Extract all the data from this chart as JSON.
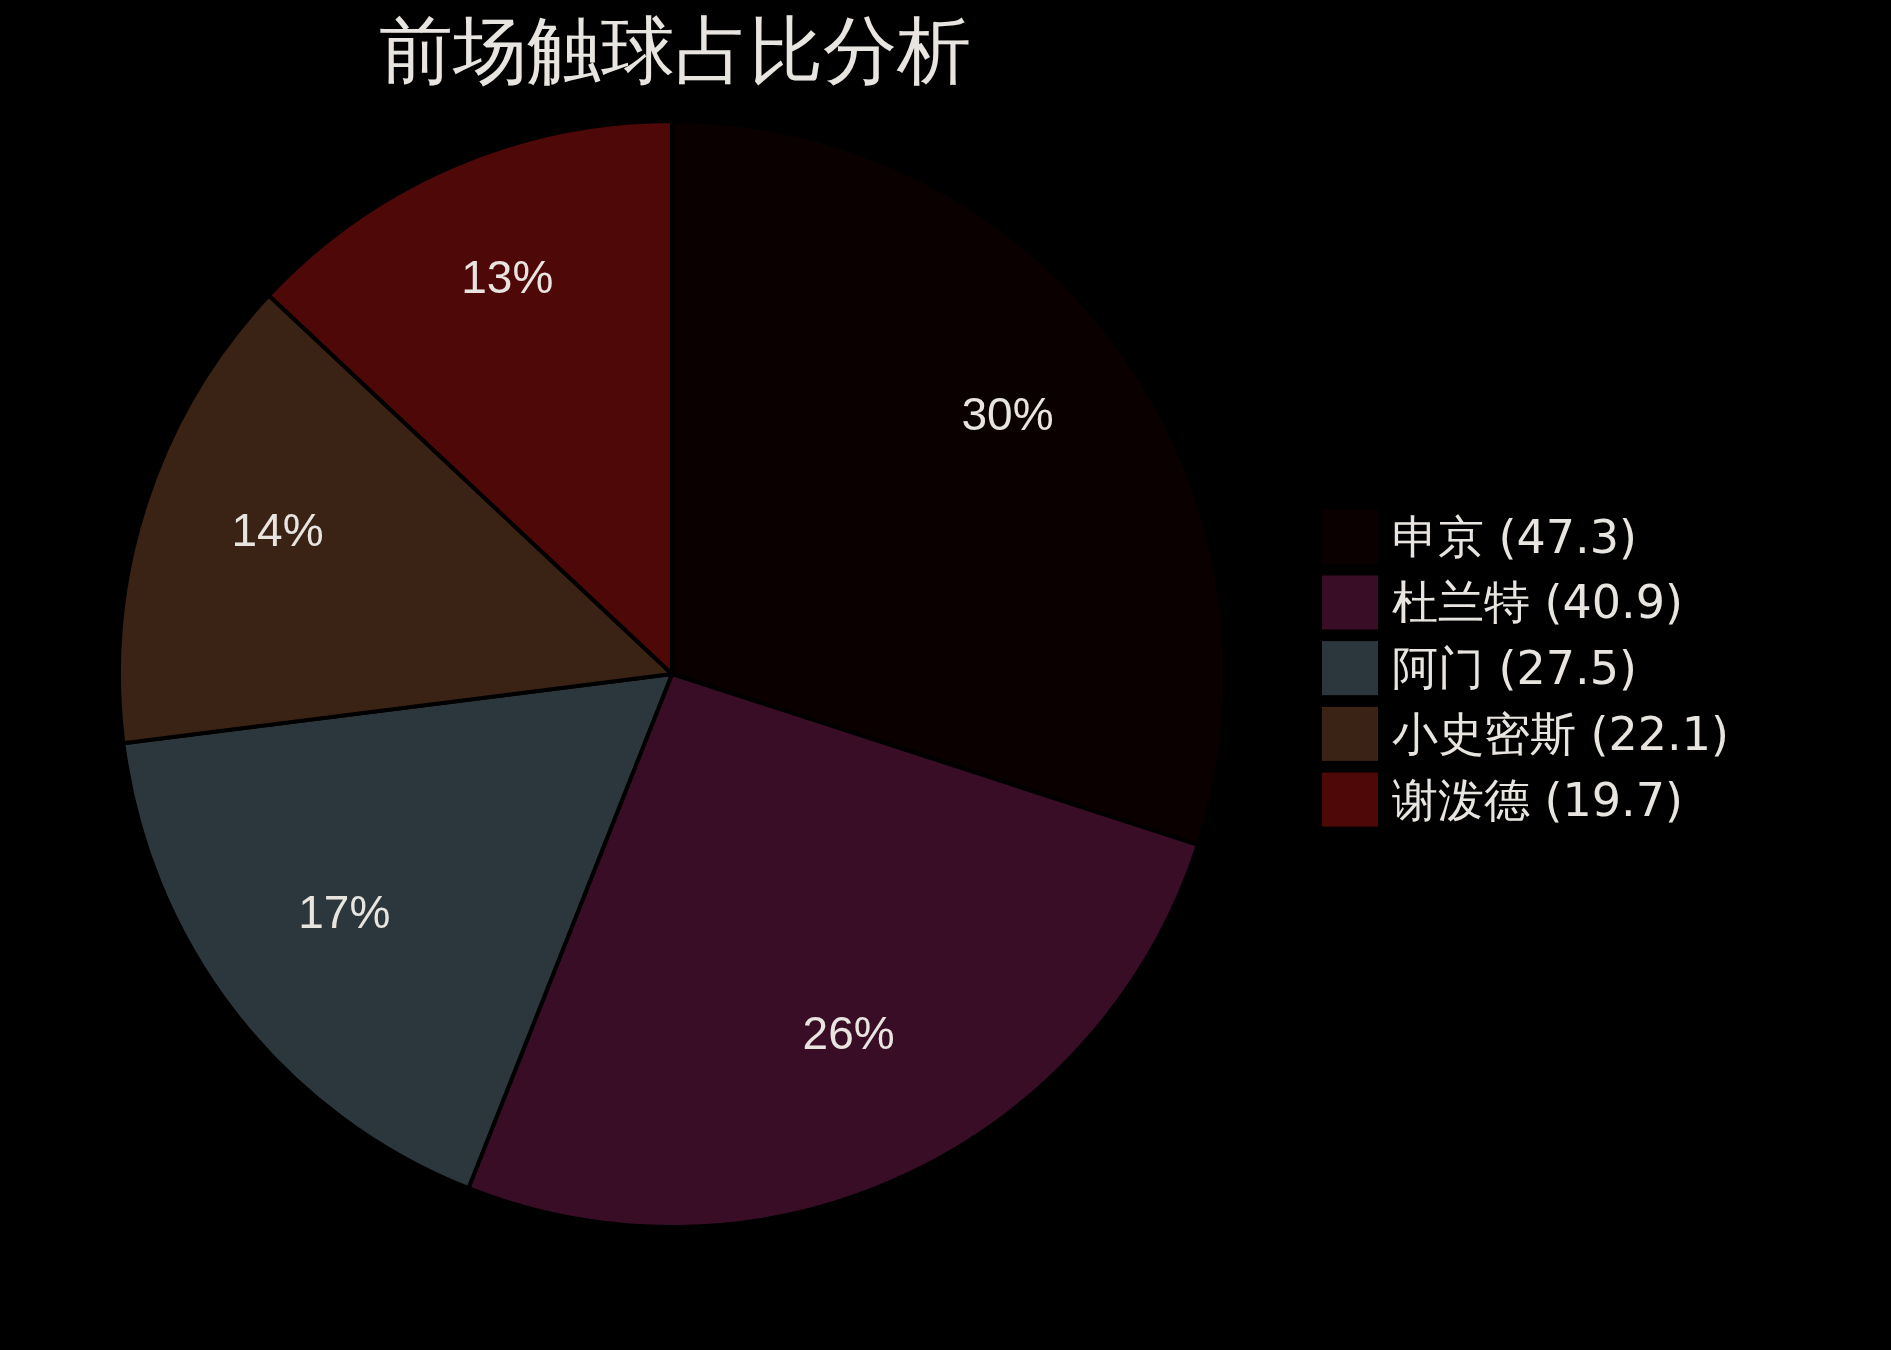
{
  "chart_data": {
    "type": "pie",
    "title": "前场触球占比分析",
    "categories": [
      "申京 (47.3)",
      "杜兰特 (40.9)",
      "阿门 (27.5)",
      "小史密斯 (22.1)",
      "谢泼德 (19.7)"
    ],
    "values": [
      30,
      26,
      17,
      14,
      13
    ],
    "colors": [
      "#0b0000",
      "#3a0d27",
      "#2c373d",
      "#3a2215",
      "#4e0808"
    ],
    "value_labels": [
      "30%",
      "26%",
      "17%",
      "14%",
      "13%"
    ],
    "legend": "right"
  }
}
